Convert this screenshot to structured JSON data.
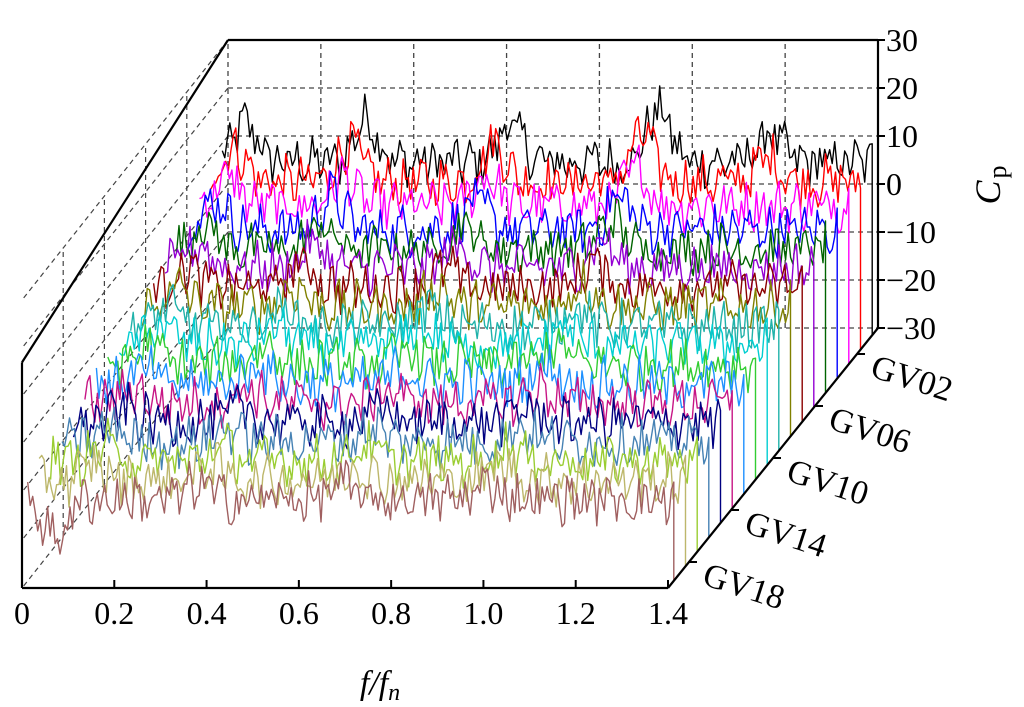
{
  "chart_data": {
    "type": "line",
    "projection": "3d-waterfall",
    "title": "",
    "xlabel": "f/f",
    "xlabel_sub": "n",
    "zlabel": "C",
    "zlabel_sub": "p",
    "xlim": [
      0,
      1.4
    ],
    "zlim": [
      -30,
      30
    ],
    "x_ticks": [
      "0",
      "0.2",
      "0.4",
      "0.6",
      "0.8",
      "1.0",
      "1.2",
      "1.4"
    ],
    "z_ticks": [
      "30",
      "20",
      "10",
      "0",
      "−10",
      "−20",
      "−30"
    ],
    "z_tick_values": [
      30,
      20,
      10,
      0,
      -10,
      -20,
      -30
    ],
    "depth_ticks": [
      "GV02",
      "GV06",
      "GV10",
      "GV14",
      "GV18"
    ],
    "grid": true,
    "series": [
      {
        "color": "#000000",
        "base": 6,
        "peaks": [
          [
            0.05,
            8
          ],
          [
            0.31,
            9
          ],
          [
            0.62,
            8
          ],
          [
            0.94,
            11
          ],
          [
            1.18,
            6
          ]
        ]
      },
      {
        "color": "#ff0000",
        "base": 5,
        "peaks": [
          [
            0.05,
            7
          ],
          [
            0.3,
            8
          ],
          [
            0.61,
            8
          ],
          [
            0.93,
            10
          ],
          [
            1.2,
            5
          ]
        ]
      },
      {
        "color": "#ff00ff",
        "base": 3,
        "peaks": [
          [
            0.06,
            6
          ],
          [
            0.31,
            6
          ],
          [
            0.62,
            6
          ],
          [
            0.94,
            8
          ]
        ]
      },
      {
        "color": "#0000ff",
        "base": 1,
        "peaks": [
          [
            0.06,
            6
          ],
          [
            0.31,
            7
          ],
          [
            0.62,
            6
          ],
          [
            0.93,
            7
          ]
        ]
      },
      {
        "color": "#006400",
        "base": 0,
        "peaks": [
          [
            0.06,
            5
          ],
          [
            0.31,
            5
          ],
          [
            0.62,
            5
          ],
          [
            0.94,
            6
          ]
        ]
      },
      {
        "color": "#9400d3",
        "base": -1,
        "peaks": [
          [
            0.07,
            5
          ],
          [
            0.32,
            5
          ],
          [
            0.63,
            5
          ],
          [
            0.94,
            6
          ]
        ]
      },
      {
        "color": "#8b0000",
        "base": -2,
        "peaks": [
          [
            0.07,
            4
          ],
          [
            0.32,
            5
          ],
          [
            0.63,
            4
          ],
          [
            0.95,
            5
          ]
        ]
      },
      {
        "color": "#808000",
        "base": -3,
        "peaks": [
          [
            0.08,
            4
          ],
          [
            0.33,
            4
          ],
          [
            0.64,
            4
          ],
          [
            0.95,
            5
          ]
        ]
      },
      {
        "color": "#20b2aa",
        "base": -4,
        "peaks": [
          [
            0.08,
            4
          ],
          [
            0.33,
            4
          ],
          [
            0.64,
            4
          ],
          [
            0.96,
            4
          ]
        ]
      },
      {
        "color": "#00ced1",
        "base": -5,
        "peaks": [
          [
            0.09,
            4
          ],
          [
            0.34,
            4
          ],
          [
            0.65,
            4
          ],
          [
            0.96,
            4
          ]
        ]
      },
      {
        "color": "#32cd32",
        "base": -6,
        "peaks": [
          [
            0.09,
            4
          ],
          [
            0.34,
            4
          ],
          [
            0.65,
            3
          ],
          [
            0.97,
            4
          ]
        ]
      },
      {
        "color": "#1e90ff",
        "base": -7,
        "peaks": [
          [
            0.1,
            3
          ],
          [
            0.35,
            4
          ],
          [
            0.66,
            3
          ],
          [
            0.97,
            4
          ]
        ]
      },
      {
        "color": "#c71585",
        "base": -8,
        "peaks": [
          [
            0.1,
            3
          ],
          [
            0.35,
            3
          ],
          [
            0.66,
            3
          ],
          [
            0.98,
            3
          ]
        ]
      },
      {
        "color": "#000080",
        "base": -9,
        "peaks": [
          [
            0.11,
            3
          ],
          [
            0.36,
            3
          ],
          [
            0.67,
            3
          ],
          [
            0.98,
            3
          ]
        ]
      },
      {
        "color": "#4682b4",
        "base": -10,
        "peaks": [
          [
            0.11,
            3
          ],
          [
            0.36,
            3
          ],
          [
            0.67,
            3
          ],
          [
            0.99,
            3
          ]
        ]
      },
      {
        "color": "#9acd32",
        "base": -11,
        "peaks": [
          [
            0.12,
            3
          ],
          [
            0.37,
            3
          ],
          [
            0.68,
            3
          ],
          [
            0.99,
            3
          ]
        ]
      },
      {
        "color": "#bdb76b",
        "base": -12,
        "peaks": [
          [
            0.12,
            3
          ],
          [
            0.37,
            3
          ],
          [
            0.68,
            3
          ],
          [
            1.0,
            3
          ]
        ]
      },
      {
        "color": "#a06060",
        "base": -13,
        "peaks": [
          [
            0.06,
            -8
          ],
          [
            0.37,
            3
          ],
          [
            0.68,
            3
          ],
          [
            1.0,
            3
          ]
        ]
      }
    ]
  }
}
